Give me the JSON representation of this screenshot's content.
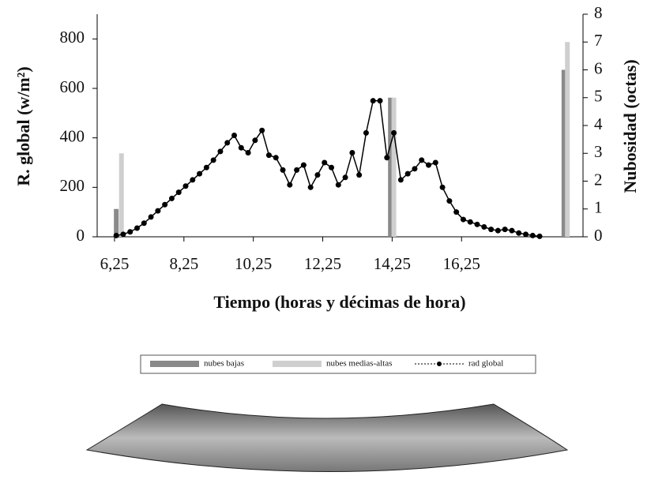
{
  "chart_data": {
    "type": "bar-line",
    "x_label": "Tiempo (horas y décimas de hora)",
    "y_label": "R. global (w/m²)",
    "y2_label": "Nubosidad (octas)",
    "xlim": [
      5.75,
      19.75
    ],
    "xticks": [
      {
        "value": 6.25,
        "label": "6,25"
      },
      {
        "value": 8.25,
        "label": "8,25"
      },
      {
        "value": 10.25,
        "label": "10,25"
      },
      {
        "value": 12.25,
        "label": "12,25"
      },
      {
        "value": 14.25,
        "label": "14,25"
      },
      {
        "value": 16.25,
        "label": "16,25"
      }
    ],
    "ylim": [
      0,
      900
    ],
    "yticks": [
      0,
      200,
      400,
      600,
      800
    ],
    "y2lim": [
      0,
      8
    ],
    "y2ticks": [
      0,
      1,
      2,
      3,
      4,
      5,
      6,
      7,
      8
    ],
    "series": [
      {
        "name": "nubes bajas",
        "kind": "bar",
        "axis": "y2",
        "color": "#8a8a8a",
        "x": [
          6.3,
          14.2,
          19.2
        ],
        "values": [
          1,
          5,
          6
        ]
      },
      {
        "name": "nubes medias-altas",
        "kind": "bar",
        "axis": "y2",
        "color": "#cfcfcf",
        "x": [
          6.45,
          14.3,
          19.3
        ],
        "values": [
          3,
          5,
          7
        ]
      },
      {
        "name": "rad global",
        "kind": "line",
        "color": "#000000",
        "x": [
          6.3,
          6.5,
          6.7,
          6.9,
          7.1,
          7.3,
          7.5,
          7.7,
          7.9,
          8.1,
          8.3,
          8.5,
          8.7,
          8.9,
          9.1,
          9.3,
          9.5,
          9.7,
          9.9,
          10.1,
          10.3,
          10.5,
          10.7,
          10.9,
          11.1,
          11.3,
          11.5,
          11.7,
          11.9,
          12.1,
          12.3,
          12.5,
          12.7,
          12.9,
          13.1,
          13.3,
          13.5,
          13.7,
          13.9,
          14.1,
          14.3,
          14.5,
          14.7,
          14.9,
          15.1,
          15.3,
          15.5,
          15.7,
          15.9,
          16.1,
          16.3,
          16.5,
          16.7,
          16.9,
          17.1,
          17.3,
          17.5,
          17.7,
          17.9,
          18.1,
          18.3,
          18.5
        ],
        "values": [
          5,
          10,
          20,
          35,
          55,
          80,
          105,
          130,
          155,
          180,
          205,
          230,
          255,
          280,
          310,
          345,
          380,
          410,
          360,
          340,
          390,
          430,
          330,
          320,
          270,
          210,
          270,
          290,
          200,
          250,
          300,
          280,
          210,
          240,
          340,
          250,
          420,
          550,
          550,
          320,
          420,
          230,
          255,
          275,
          310,
          290,
          300,
          200,
          145,
          100,
          70,
          60,
          50,
          40,
          30,
          25,
          30,
          25,
          15,
          10,
          5,
          2
        ]
      }
    ]
  }
}
